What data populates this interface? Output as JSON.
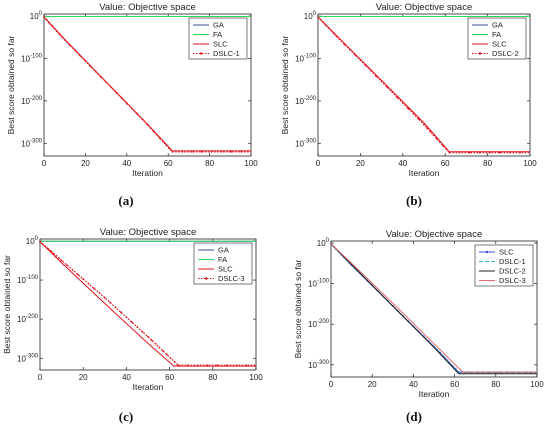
{
  "colors": {
    "GA": "#3b4b9b",
    "FA": "#2fd65b",
    "SLC": "#e0141e",
    "DSLC": "#e0141e",
    "axis": "#222222",
    "grid": "#e6e6e6"
  },
  "chart_data": [
    {
      "type": "line",
      "caption": "(a)",
      "title": "Value: Objective space",
      "xlabel": "Iteration",
      "ylabel": "Best score obtained so far",
      "xlim": [
        0,
        100
      ],
      "ylim_exponent": [
        -330,
        5
      ],
      "y_scale": "log",
      "xticks": [
        "0",
        "20",
        "40",
        "60",
        "80",
        "100"
      ],
      "yticks": [
        {
          "label": "10",
          "exp": "0",
          "value": 0
        },
        {
          "label": "10",
          "exp": "-100",
          "value": -100
        },
        {
          "label": "10",
          "exp": "-200",
          "value": -200
        },
        {
          "label": "10",
          "exp": "-300",
          "value": -300
        }
      ],
      "legend_position": "top-right",
      "series": [
        {
          "name": "GA",
          "color_key": "GA",
          "style": "solid",
          "x": [
            0,
            100
          ],
          "y_exp": [
            -1,
            -1
          ]
        },
        {
          "name": "FA",
          "color_key": "FA",
          "style": "solid",
          "x": [
            0,
            100
          ],
          "y_exp": [
            -1,
            -1
          ]
        },
        {
          "name": "SLC",
          "color_key": "SLC",
          "style": "solid",
          "x": [
            0,
            10,
            30,
            50,
            62,
            100
          ],
          "y_exp": [
            -2,
            -55,
            -155,
            -255,
            -318,
            -318
          ]
        },
        {
          "name": "DSLC-1",
          "color_key": "DSLC",
          "style": "dotted-marker",
          "x": [
            0,
            10,
            30,
            50,
            62,
            100
          ],
          "y_exp": [
            -2,
            -56,
            -156,
            -256,
            -320,
            -320
          ]
        }
      ]
    },
    {
      "type": "line",
      "caption": "(b)",
      "title": "Value: Objective space",
      "xlabel": "Iteration",
      "ylabel": "Best score obtained so far",
      "xlim": [
        0,
        100
      ],
      "ylim_exponent": [
        -330,
        5
      ],
      "y_scale": "log",
      "xticks": [
        "0",
        "20",
        "40",
        "60",
        "80",
        "100"
      ],
      "yticks": [
        {
          "label": "10",
          "exp": "0",
          "value": 0
        },
        {
          "label": "10",
          "exp": "-100",
          "value": -100
        },
        {
          "label": "10",
          "exp": "-200",
          "value": -200
        },
        {
          "label": "10",
          "exp": "-300",
          "value": -300
        }
      ],
      "legend_position": "top-right",
      "series": [
        {
          "name": "GA",
          "color_key": "GA",
          "style": "solid",
          "x": [
            0,
            100
          ],
          "y_exp": [
            -1,
            -1
          ]
        },
        {
          "name": "FA",
          "color_key": "FA",
          "style": "solid",
          "x": [
            0,
            100
          ],
          "y_exp": [
            -1,
            -1
          ]
        },
        {
          "name": "SLC",
          "color_key": "SLC",
          "style": "solid",
          "x": [
            0,
            10,
            30,
            50,
            62,
            100
          ],
          "y_exp": [
            -2,
            -52,
            -152,
            -252,
            -320,
            -320
          ]
        },
        {
          "name": "DSLC-2",
          "color_key": "DSLC",
          "style": "dotted-marker",
          "x": [
            0,
            10,
            30,
            50,
            62,
            100
          ],
          "y_exp": [
            -2,
            -54,
            -154,
            -256,
            -322,
            -322
          ]
        }
      ]
    },
    {
      "type": "line",
      "caption": "(c)",
      "title": "Value: Objective space",
      "xlabel": "Iteration",
      "ylabel": "Best score obtained so far",
      "xlim": [
        0,
        100
      ],
      "ylim_exponent": [
        -330,
        5
      ],
      "y_scale": "log",
      "xticks": [
        "0",
        "20",
        "40",
        "60",
        "80",
        "100"
      ],
      "yticks": [
        {
          "label": "10",
          "exp": "0",
          "value": 0
        },
        {
          "label": "10",
          "exp": "-100",
          "value": -100
        },
        {
          "label": "10",
          "exp": "-200",
          "value": -200
        },
        {
          "label": "10",
          "exp": "-300",
          "value": -300
        }
      ],
      "legend_position": "top-right",
      "series": [
        {
          "name": "GA",
          "color_key": "GA",
          "style": "solid",
          "x": [
            0,
            100
          ],
          "y_exp": [
            -1,
            -1
          ]
        },
        {
          "name": "FA",
          "color_key": "FA",
          "style": "solid",
          "x": [
            0,
            100
          ],
          "y_exp": [
            -1,
            -1
          ]
        },
        {
          "name": "SLC",
          "color_key": "SLC",
          "style": "solid",
          "x": [
            0,
            10,
            30,
            50,
            62,
            100
          ],
          "y_exp": [
            -2,
            -56,
            -160,
            -262,
            -320,
            -320
          ]
        },
        {
          "name": "DSLC-3",
          "color_key": "DSLC",
          "style": "dotted-marker",
          "x": [
            0,
            10,
            30,
            50,
            64,
            100
          ],
          "y_exp": [
            -2,
            -50,
            -145,
            -245,
            -318,
            -318
          ]
        }
      ]
    },
    {
      "type": "line",
      "caption": "(d)",
      "title": "Value: Objective space",
      "xlabel": "Iteration",
      "ylabel": "Best score obtained so far",
      "xlim": [
        0,
        100
      ],
      "ylim_exponent": [
        -330,
        5
      ],
      "y_scale": "log",
      "xticks": [
        "0",
        "20",
        "40",
        "60",
        "80",
        "100"
      ],
      "yticks": [
        {
          "label": "10",
          "exp": "0",
          "value": 0
        },
        {
          "label": "10",
          "exp": "-100",
          "value": -100
        },
        {
          "label": "10",
          "exp": "-200",
          "value": -200
        },
        {
          "label": "10",
          "exp": "-300",
          "value": -300
        }
      ],
      "legend_position": "top-right",
      "series": [
        {
          "name": "SLC",
          "color": "#3b4bd0",
          "style": "marker",
          "x": [
            0,
            10,
            30,
            50,
            62,
            100
          ],
          "y_exp": [
            -2,
            -55,
            -155,
            -255,
            -318,
            -318
          ]
        },
        {
          "name": "DSLC-1",
          "color": "#2ab4c0",
          "style": "dashed",
          "x": [
            0,
            10,
            30,
            50,
            62,
            100
          ],
          "y_exp": [
            -2,
            -54,
            -156,
            -256,
            -320,
            -320
          ]
        },
        {
          "name": "DSLC-2",
          "color": "#222222",
          "style": "solid",
          "x": [
            0,
            10,
            30,
            50,
            62,
            100
          ],
          "y_exp": [
            -2,
            -53,
            -155,
            -257,
            -322,
            -322
          ]
        },
        {
          "name": "DSLC-3",
          "color": "#e06a6a",
          "style": "solid",
          "x": [
            0,
            10,
            30,
            50,
            64,
            100
          ],
          "y_exp": [
            -2,
            -50,
            -148,
            -248,
            -318,
            -318
          ]
        }
      ]
    }
  ]
}
